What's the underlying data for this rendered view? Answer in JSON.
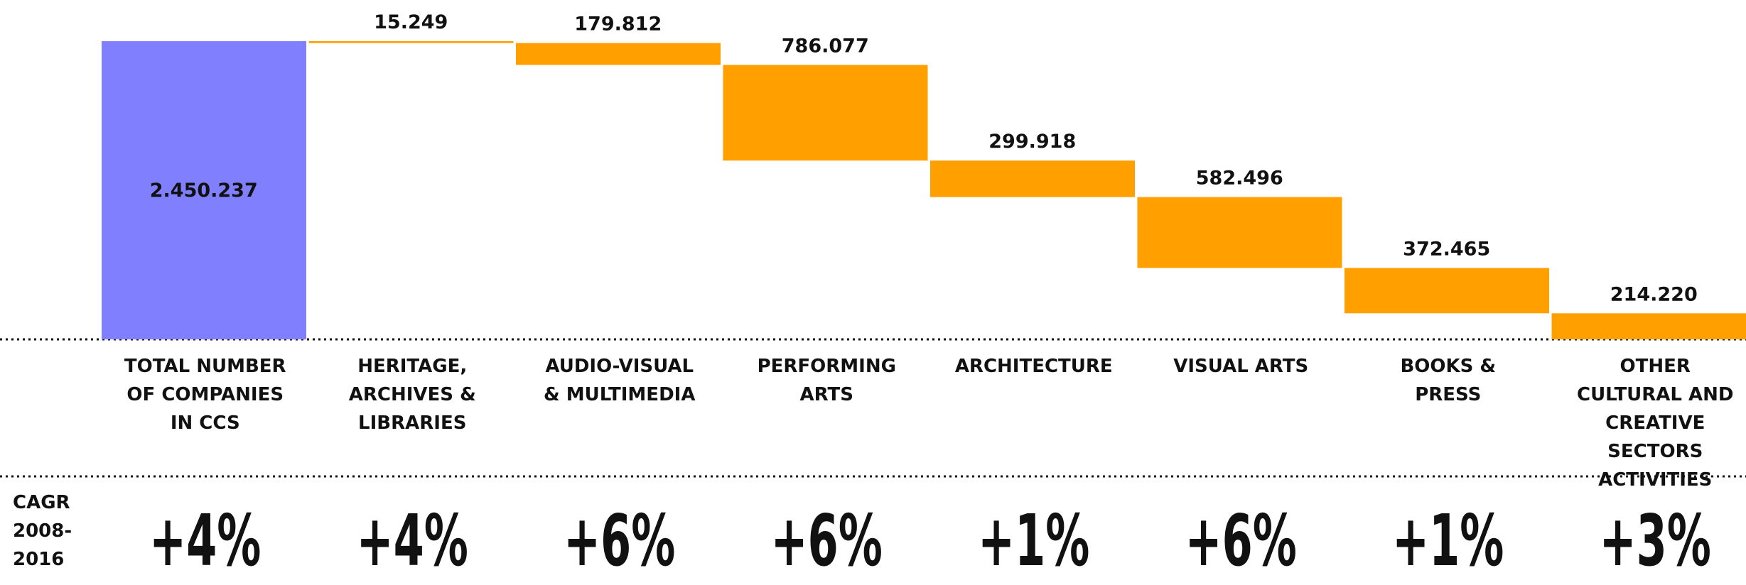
{
  "chart_data": {
    "type": "waterfall",
    "categories": [
      "TOTAL NUMBER OF COMPANIES IN CCS",
      "HERITAGE, ARCHIVES & LIBRARIES",
      "AUDIO-VISUAL & MULTIMEDIA",
      "PERFORMING ARTS",
      "ARCHITECTURE",
      "VISUAL ARTS",
      "BOOKS & PRESS",
      "OTHER CULTURAL AND CREATIVE SECTORS ACTIVITIES"
    ],
    "values": [
      2450237,
      15249,
      179812,
      786077,
      299918,
      582496,
      372465,
      214220
    ],
    "value_labels": [
      "2.450.237",
      "15.249",
      "179.812",
      "786.077",
      "299.918",
      "582.496",
      "372.465",
      "214.220"
    ],
    "total_color": "#8080ff",
    "color": "#ffa000",
    "ylim": [
      0,
      2450237
    ],
    "cagr": {
      "label": "CAGR 2008-2016",
      "values": [
        4,
        4,
        6,
        6,
        1,
        6,
        1,
        3
      ],
      "value_labels": [
        "+4%",
        "+4%",
        "+6%",
        "+6%",
        "+1%",
        "+6%",
        "+1%",
        "+3%"
      ]
    }
  }
}
